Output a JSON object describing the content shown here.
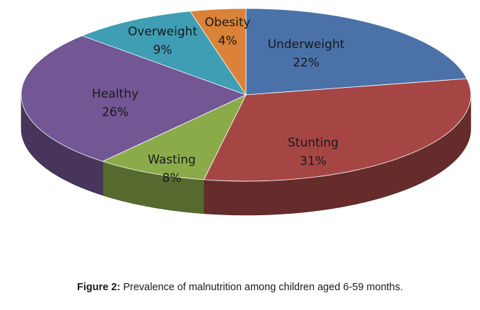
{
  "chart_data": {
    "type": "pie",
    "title": "",
    "categories": [
      "Underweight",
      "Stunting",
      "Wasting",
      "Healthy",
      "Overweight",
      "Obesity"
    ],
    "values": [
      22,
      31,
      8,
      26,
      9,
      4
    ],
    "labels": [
      "22%",
      "31%",
      "8%",
      "26%",
      "9%",
      "4%"
    ],
    "colors": [
      "#4a72a9",
      "#a54645",
      "#8bab4b",
      "#735694",
      "#3f9db4",
      "#da8237"
    ],
    "style": "3d",
    "legend": "none"
  },
  "caption": {
    "label": "Figure 2:",
    "text": " Prevalence of malnutrition among children aged 6-59 months."
  }
}
